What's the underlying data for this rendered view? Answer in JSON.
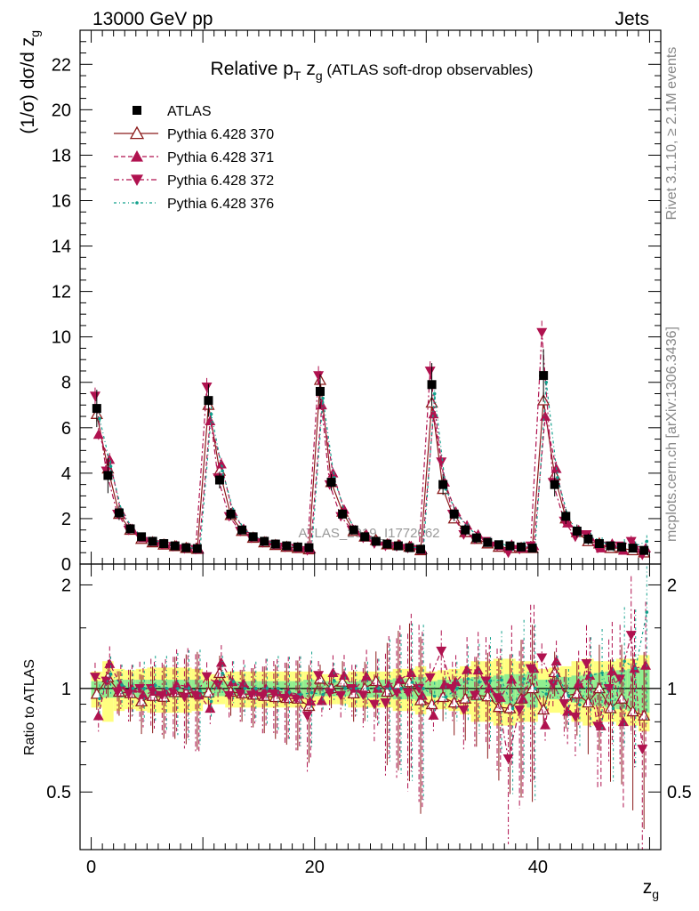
{
  "header": {
    "left": "13000 GeV pp",
    "right": "Jets"
  },
  "side_labels": {
    "rivet": "Rivet 3.1.10, ≥ 2.1M events",
    "mcplots": "mcplots.cern.ch [arXiv:1306.3436]"
  },
  "chart_data": {
    "type": "scatter",
    "title": "Relative p_T z_g (ATLAS soft-drop observables)",
    "title_main": "Relative p",
    "title_sub": "T",
    "title_mid": " z",
    "title_sub2": "g",
    "title_suffix": " (ATLAS soft-drop observables)",
    "watermark": "ATLAS_2019_I1772062",
    "ylabel": "(1/σ) dσ/d z_g",
    "ylabel_main": "(1/σ) dσ/d z",
    "ylabel_sub": "g",
    "xlabel": "z_g",
    "xlabel_main": "z",
    "xlabel_sub": "g",
    "ratio_ylabel": "Ratio to ATLAS",
    "xlim": [
      -1,
      51
    ],
    "ylim": [
      0,
      23.5
    ],
    "ratio_ylim": [
      0.34,
      2.3
    ],
    "yticks": [
      "0",
      "2",
      "4",
      "6",
      "8",
      "10",
      "12",
      "14",
      "16",
      "18",
      "20",
      "22"
    ],
    "xticks": [
      "0",
      "20",
      "40"
    ],
    "ratio_yticks": [
      "0.5",
      "1",
      "2"
    ],
    "legend": {
      "placement": "top-left"
    },
    "x": [
      0.5,
      1.5,
      2.5,
      3.5,
      4.5,
      5.5,
      6.5,
      7.5,
      8.5,
      9.5,
      10.5,
      11.5,
      12.5,
      13.5,
      14.5,
      15.5,
      16.5,
      17.5,
      18.5,
      19.5,
      20.5,
      21.5,
      22.5,
      23.5,
      24.5,
      25.5,
      26.5,
      27.5,
      28.5,
      29.5,
      30.5,
      31.5,
      32.5,
      33.5,
      34.5,
      35.5,
      36.5,
      37.5,
      38.5,
      39.5,
      40.5,
      41.5,
      42.5,
      43.5,
      44.5,
      45.5,
      46.5,
      47.5,
      48.5,
      49.5
    ],
    "data": {
      "name": "ATLAS",
      "values": [
        6.85,
        3.9,
        2.25,
        1.55,
        1.2,
        1.0,
        0.9,
        0.8,
        0.72,
        0.68,
        7.2,
        3.7,
        2.2,
        1.5,
        1.2,
        1.0,
        0.88,
        0.8,
        0.75,
        0.72,
        7.6,
        3.6,
        2.2,
        1.5,
        1.2,
        1.0,
        0.88,
        0.8,
        0.72,
        0.65,
        7.9,
        3.5,
        2.2,
        1.5,
        1.15,
        0.95,
        0.85,
        0.8,
        0.75,
        0.7,
        8.3,
        3.5,
        2.1,
        1.45,
        1.1,
        0.9,
        0.8,
        0.75,
        0.7,
        0.6
      ]
    },
    "series": [
      {
        "name": "Pythia 6.428 370",
        "color": "#8b1a1a",
        "marker": "open-triangle-up",
        "values": [
          6.6,
          4.2,
          2.2,
          1.5,
          1.1,
          0.95,
          0.85,
          0.78,
          0.7,
          0.66,
          7.0,
          4.1,
          2.15,
          1.45,
          1.15,
          0.95,
          0.83,
          0.75,
          0.7,
          0.64,
          8.1,
          3.6,
          2.3,
          1.45,
          1.2,
          1.05,
          0.86,
          0.82,
          0.75,
          0.6,
          7.1,
          3.3,
          2.0,
          1.4,
          1.1,
          0.9,
          0.75,
          0.7,
          0.7,
          0.7,
          7.2,
          3.9,
          2.0,
          1.4,
          1.0,
          0.9,
          0.7,
          0.7,
          0.6,
          0.5
        ]
      },
      {
        "name": "Pythia 6.428 371",
        "color": "#b0124f",
        "marker": "triangle-up",
        "values": [
          5.7,
          4.6,
          2.3,
          1.55,
          1.15,
          0.98,
          0.88,
          0.82,
          0.73,
          0.65,
          6.3,
          4.4,
          2.3,
          1.55,
          1.18,
          1.0,
          0.86,
          0.78,
          0.72,
          0.66,
          7.0,
          4.0,
          2.4,
          1.5,
          1.3,
          1.0,
          0.9,
          0.85,
          0.8,
          0.62,
          6.6,
          3.6,
          2.3,
          1.7,
          1.3,
          0.95,
          0.8,
          0.85,
          0.7,
          0.8,
          6.5,
          4.2,
          1.8,
          1.5,
          1.2,
          0.7,
          0.9,
          0.6,
          0.8,
          0.7
        ]
      },
      {
        "name": "Pythia 6.428 372",
        "color": "#b0124f",
        "marker": "triangle-down",
        "values": [
          7.4,
          4.1,
          2.2,
          1.5,
          1.2,
          1.0,
          0.86,
          0.78,
          0.68,
          0.65,
          7.8,
          3.8,
          2.1,
          1.45,
          1.15,
          0.95,
          0.85,
          0.75,
          0.7,
          0.6,
          8.3,
          3.5,
          2.1,
          1.5,
          1.15,
          0.9,
          0.8,
          0.78,
          0.7,
          0.65,
          8.5,
          4.5,
          2.2,
          1.3,
          1.1,
          1.0,
          0.8,
          0.5,
          0.65,
          0.8,
          10.2,
          3.6,
          1.9,
          1.2,
          1.3,
          0.7,
          0.8,
          0.8,
          1.0,
          0.4
        ]
      },
      {
        "name": "Pythia 6.428 376",
        "color": "#12a08c",
        "marker": "dot",
        "values": [
          6.4,
          4.3,
          2.3,
          1.55,
          1.2,
          1.02,
          0.9,
          0.8,
          0.72,
          0.67,
          6.6,
          4.1,
          2.3,
          1.5,
          1.2,
          1.0,
          0.88,
          0.78,
          0.72,
          0.7,
          7.3,
          3.8,
          2.2,
          1.5,
          1.2,
          1.0,
          0.88,
          0.8,
          0.75,
          0.65,
          7.5,
          3.3,
          2.2,
          1.6,
          1.2,
          1.0,
          0.9,
          0.7,
          0.8,
          0.7,
          8.0,
          3.8,
          2.0,
          1.3,
          1.2,
          1.0,
          0.7,
          0.9,
          0.8,
          1.0
        ]
      }
    ],
    "band": {
      "stat_frac": [
        0.05,
        0.06,
        0.06,
        0.06,
        0.06,
        0.06,
        0.06,
        0.06,
        0.06,
        0.06,
        0.05,
        0.05,
        0.05,
        0.05,
        0.05,
        0.05,
        0.05,
        0.05,
        0.05,
        0.06,
        0.05,
        0.05,
        0.05,
        0.05,
        0.06,
        0.06,
        0.06,
        0.07,
        0.07,
        0.08,
        0.05,
        0.06,
        0.06,
        0.07,
        0.08,
        0.08,
        0.09,
        0.1,
        0.1,
        0.12,
        0.06,
        0.07,
        0.08,
        0.09,
        0.1,
        0.11,
        0.12,
        0.13,
        0.14,
        0.15
      ],
      "total_frac": [
        0.12,
        0.2,
        0.14,
        0.13,
        0.14,
        0.15,
        0.15,
        0.15,
        0.15,
        0.14,
        0.1,
        0.1,
        0.12,
        0.12,
        0.12,
        0.12,
        0.12,
        0.12,
        0.12,
        0.12,
        0.1,
        0.1,
        0.1,
        0.12,
        0.12,
        0.12,
        0.12,
        0.14,
        0.14,
        0.16,
        0.12,
        0.13,
        0.14,
        0.16,
        0.2,
        0.2,
        0.22,
        0.22,
        0.2,
        0.2,
        0.14,
        0.15,
        0.16,
        0.2,
        0.22,
        0.2,
        0.2,
        0.22,
        0.22,
        0.25
      ]
    }
  }
}
